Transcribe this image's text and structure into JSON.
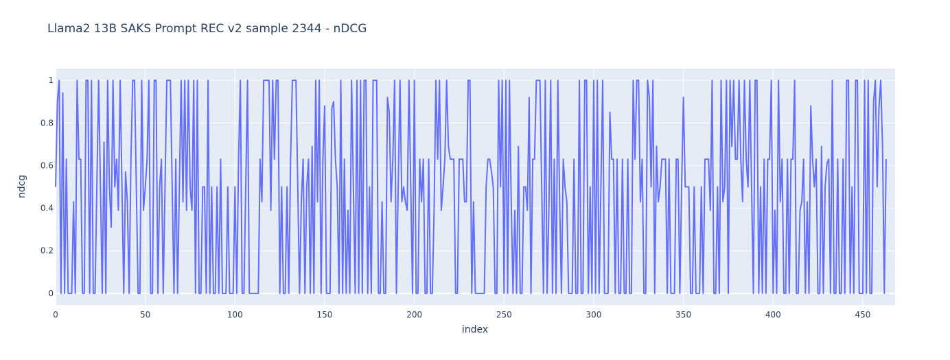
{
  "chart_data": {
    "type": "line",
    "title": "Llama2 13B SAKS Prompt REC v2 sample 2344 - nDCG",
    "xlabel": "index",
    "ylabel": "ndcg",
    "xlim": [
      0,
      468
    ],
    "ylim": [
      -0.055,
      1.055
    ],
    "xticks": [
      0,
      50,
      100,
      150,
      200,
      250,
      300,
      350,
      400,
      450
    ],
    "yticks": [
      0,
      0.2,
      0.4,
      0.6,
      0.8,
      1
    ],
    "grid": true,
    "legend": "none",
    "line_color": "#636efa",
    "plot_bgcolor": "#e5ecf6",
    "series": [
      {
        "values": [
          0.5,
          0.9,
          1,
          0,
          0.94,
          0,
          0.63,
          0,
          0,
          0,
          0.43,
          0,
          1,
          0.63,
          0.63,
          0,
          0,
          1,
          1,
          0,
          1,
          0,
          0,
          0.5,
          1,
          0.5,
          0,
          0.71,
          0,
          1,
          0.5,
          0.31,
          1,
          0.5,
          0.63,
          0.39,
          1,
          0.5,
          0,
          0.57,
          0.43,
          0,
          0.63,
          1,
          1,
          0.5,
          0,
          0,
          1,
          0.39,
          0.5,
          0.63,
          1,
          0,
          0,
          1,
          1,
          0,
          0.5,
          0.63,
          0,
          0.5,
          1,
          1,
          1,
          0.5,
          0,
          0.63,
          0,
          0.5,
          1,
          0.43,
          1,
          0.39,
          1,
          0.5,
          0.39,
          1,
          0,
          1,
          0,
          0,
          0.5,
          0.5,
          0,
          1,
          0,
          0.5,
          0,
          0,
          0.5,
          0,
          0.63,
          0,
          0,
          0,
          0.5,
          0,
          0,
          0,
          0.5,
          0,
          0.63,
          1,
          0,
          0,
          0.5,
          1,
          0,
          0,
          0,
          0,
          0,
          0,
          0.63,
          0.43,
          1,
          1,
          1,
          1,
          0.39,
          1,
          0.63,
          1,
          1,
          0,
          0.5,
          0,
          0,
          0.5,
          0,
          0.63,
          1,
          1,
          1,
          0.5,
          0,
          0.43,
          0.63,
          0,
          0.5,
          0.63,
          0,
          0.69,
          0,
          1,
          0.43,
          1,
          0,
          0.63,
          0.88,
          0,
          0,
          0,
          0.87,
          0.9,
          0.63,
          0.5,
          0,
          1,
          0,
          0.63,
          0,
          0.39,
          0,
          1,
          0.5,
          0,
          1,
          0,
          1,
          0,
          1,
          1,
          0,
          0.5,
          0,
          1,
          1,
          1,
          0,
          0,
          0.43,
          0,
          0,
          0.92,
          0.85,
          0.43,
          0.63,
          1,
          0,
          0.5,
          1,
          0.43,
          0.5,
          0.43,
          0.39,
          1,
          0.5,
          0,
          1,
          0,
          0,
          0.63,
          0.43,
          0.63,
          0,
          0,
          0.63,
          0,
          0,
          0.39,
          1,
          0.63,
          1,
          0.39,
          0.5,
          0.63,
          1,
          0.69,
          0.63,
          0.63,
          0.63,
          0,
          0,
          0.63,
          0.63,
          0.63,
          0.43,
          0.43,
          1,
          1,
          0,
          0.43,
          0,
          0,
          0,
          0,
          0,
          0,
          0.5,
          0.63,
          0.63,
          0.57,
          0.5,
          0,
          0,
          1,
          0.5,
          1,
          0,
          1,
          0,
          1,
          0.43,
          0,
          0.39,
          0,
          0.69,
          0,
          0,
          0.5,
          0.5,
          0.39,
          0.92,
          0,
          0.63,
          0.63,
          1,
          1,
          1,
          0.5,
          0,
          1,
          0,
          0.39,
          1,
          0,
          0.63,
          0,
          1,
          0.43,
          0,
          0.63,
          0.5,
          0.43,
          0,
          0,
          0,
          0.63,
          0,
          0,
          1,
          0,
          0,
          1,
          1,
          0,
          0.5,
          0,
          1,
          0,
          1,
          0,
          0.5,
          1,
          0,
          0,
          0,
          0.85,
          0.63,
          0.63,
          0,
          0.63,
          0,
          0,
          0.63,
          0,
          0,
          0.63,
          0,
          0,
          1,
          0.63,
          1,
          1,
          0.43,
          0.63,
          0,
          0,
          1,
          0.92,
          0.5,
          1,
          0,
          0.69,
          0.43,
          0.5,
          0.63,
          0.63,
          0.63,
          0,
          0.63,
          0,
          0,
          0,
          0.63,
          0.63,
          0,
          0.5,
          0.92,
          0.5,
          0.5,
          0.5,
          0,
          0,
          0.5,
          0,
          0,
          0,
          0.5,
          0,
          0.63,
          0.63,
          0.63,
          0.39,
          1,
          0,
          0,
          0.5,
          0,
          1,
          0.43,
          0.5,
          1,
          0,
          1,
          0.69,
          1,
          0.63,
          0.63,
          1,
          0.63,
          0.43,
          1,
          0.63,
          0.5,
          1,
          0.5,
          0,
          1,
          1,
          0,
          0.5,
          0,
          0.63,
          0,
          0.63,
          0.63,
          1,
          0,
          0.39,
          0,
          1,
          0.43,
          0.63,
          0,
          0,
          0.63,
          0,
          0.63,
          0.63,
          1,
          0,
          0,
          0.39,
          0.43,
          0.63,
          0,
          0.43,
          0,
          0.88,
          0.63,
          0.5,
          0.63,
          0,
          0,
          0.69,
          0,
          0.5,
          0.61,
          0.63,
          0,
          1,
          0,
          0,
          0.63,
          0,
          0,
          0.63,
          0,
          1,
          1,
          0,
          0.5,
          0,
          1,
          1,
          0,
          0,
          0,
          1,
          0,
          1,
          0,
          0,
          0.9,
          1,
          0.5,
          0.87,
          1,
          0.69,
          0,
          0.63
        ]
      }
    ]
  }
}
